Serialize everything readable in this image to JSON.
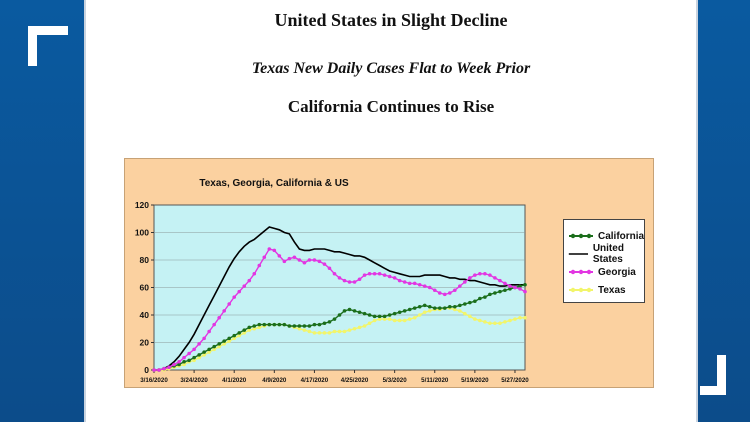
{
  "headlines": {
    "line1": "United States in Slight Decline",
    "line2": "Texas New Daily Cases Flat to Week Prior",
    "line3": "California Continues to Rise"
  },
  "chart_data": {
    "type": "line",
    "title": "Texas, Georgia, California & US",
    "xlabel": "",
    "ylabel": "",
    "ylim": [
      0,
      120
    ],
    "yticks": [
      "0",
      "20",
      "40",
      "60",
      "80",
      "100",
      "120"
    ],
    "xticks": [
      "3/16/2020",
      "3/24/2020",
      "4/1/2020",
      "4/9/2020",
      "4/17/2020",
      "4/25/2020",
      "5/3/2020",
      "5/11/2020",
      "5/19/2020",
      "5/27/2020"
    ],
    "legend_position": "right",
    "plot_background": "#c5f2f4",
    "panel_background": "#fbd1a0",
    "series": [
      {
        "name": "California",
        "color": "#1b6e1b",
        "marker": "dot",
        "values": [
          0,
          0,
          1,
          2,
          3,
          4,
          6,
          7,
          9,
          11,
          13,
          15,
          17,
          19,
          21,
          23,
          25,
          27,
          29,
          31,
          32,
          33,
          33,
          33,
          33,
          33,
          33,
          32,
          32,
          32,
          32,
          32,
          33,
          33,
          34,
          35,
          37,
          40,
          43,
          44,
          43,
          42,
          41,
          40,
          39,
          39,
          39,
          40,
          41,
          42,
          43,
          44,
          45,
          46,
          47,
          46,
          45,
          45,
          45,
          46,
          46,
          47,
          48,
          49,
          50,
          52,
          53,
          55,
          56,
          57,
          58,
          59,
          60,
          61,
          62
        ]
      },
      {
        "name": "United States",
        "color": "#000000",
        "marker": "none",
        "values": [
          0,
          0,
          1,
          3,
          6,
          10,
          15,
          20,
          26,
          33,
          40,
          47,
          54,
          61,
          68,
          75,
          81,
          86,
          90,
          93,
          95,
          98,
          101,
          104,
          103,
          102,
          100,
          99,
          93,
          88,
          87,
          87,
          88,
          88,
          88,
          87,
          86,
          86,
          85,
          84,
          83,
          83,
          82,
          80,
          78,
          76,
          74,
          72,
          71,
          70,
          69,
          68,
          68,
          68,
          69,
          69,
          69,
          69,
          68,
          67,
          67,
          66,
          66,
          65,
          65,
          64,
          63,
          62,
          62,
          61,
          61,
          62,
          62,
          62,
          62
        ]
      },
      {
        "name": "Georgia",
        "color": "#e236e2",
        "marker": "dot",
        "values": [
          0,
          0,
          1,
          2,
          4,
          6,
          9,
          12,
          15,
          19,
          23,
          28,
          33,
          38,
          43,
          48,
          53,
          57,
          61,
          65,
          70,
          76,
          82,
          88,
          87,
          83,
          79,
          81,
          82,
          80,
          78,
          80,
          80,
          79,
          77,
          74,
          70,
          67,
          65,
          64,
          64,
          66,
          69,
          70,
          70,
          70,
          69,
          68,
          67,
          65,
          64,
          63,
          63,
          62,
          61,
          60,
          58,
          56,
          55,
          56,
          58,
          61,
          64,
          67,
          69,
          70,
          70,
          69,
          67,
          65,
          63,
          61,
          60,
          59,
          57
        ]
      },
      {
        "name": "Texas",
        "color": "#f2f56a",
        "marker": "dot",
        "values": [
          0,
          0,
          0,
          1,
          2,
          3,
          4,
          6,
          7,
          9,
          11,
          13,
          15,
          17,
          19,
          21,
          23,
          25,
          27,
          29,
          30,
          31,
          32,
          33,
          33,
          33,
          33,
          32,
          31,
          30,
          29,
          28,
          27,
          27,
          27,
          27,
          28,
          28,
          28,
          29,
          30,
          31,
          32,
          34,
          36,
          37,
          37,
          37,
          36,
          36,
          36,
          37,
          38,
          40,
          42,
          43,
          44,
          44,
          45,
          45,
          44,
          43,
          41,
          39,
          37,
          36,
          35,
          34,
          34,
          34,
          35,
          36,
          37,
          38,
          38
        ]
      }
    ]
  }
}
